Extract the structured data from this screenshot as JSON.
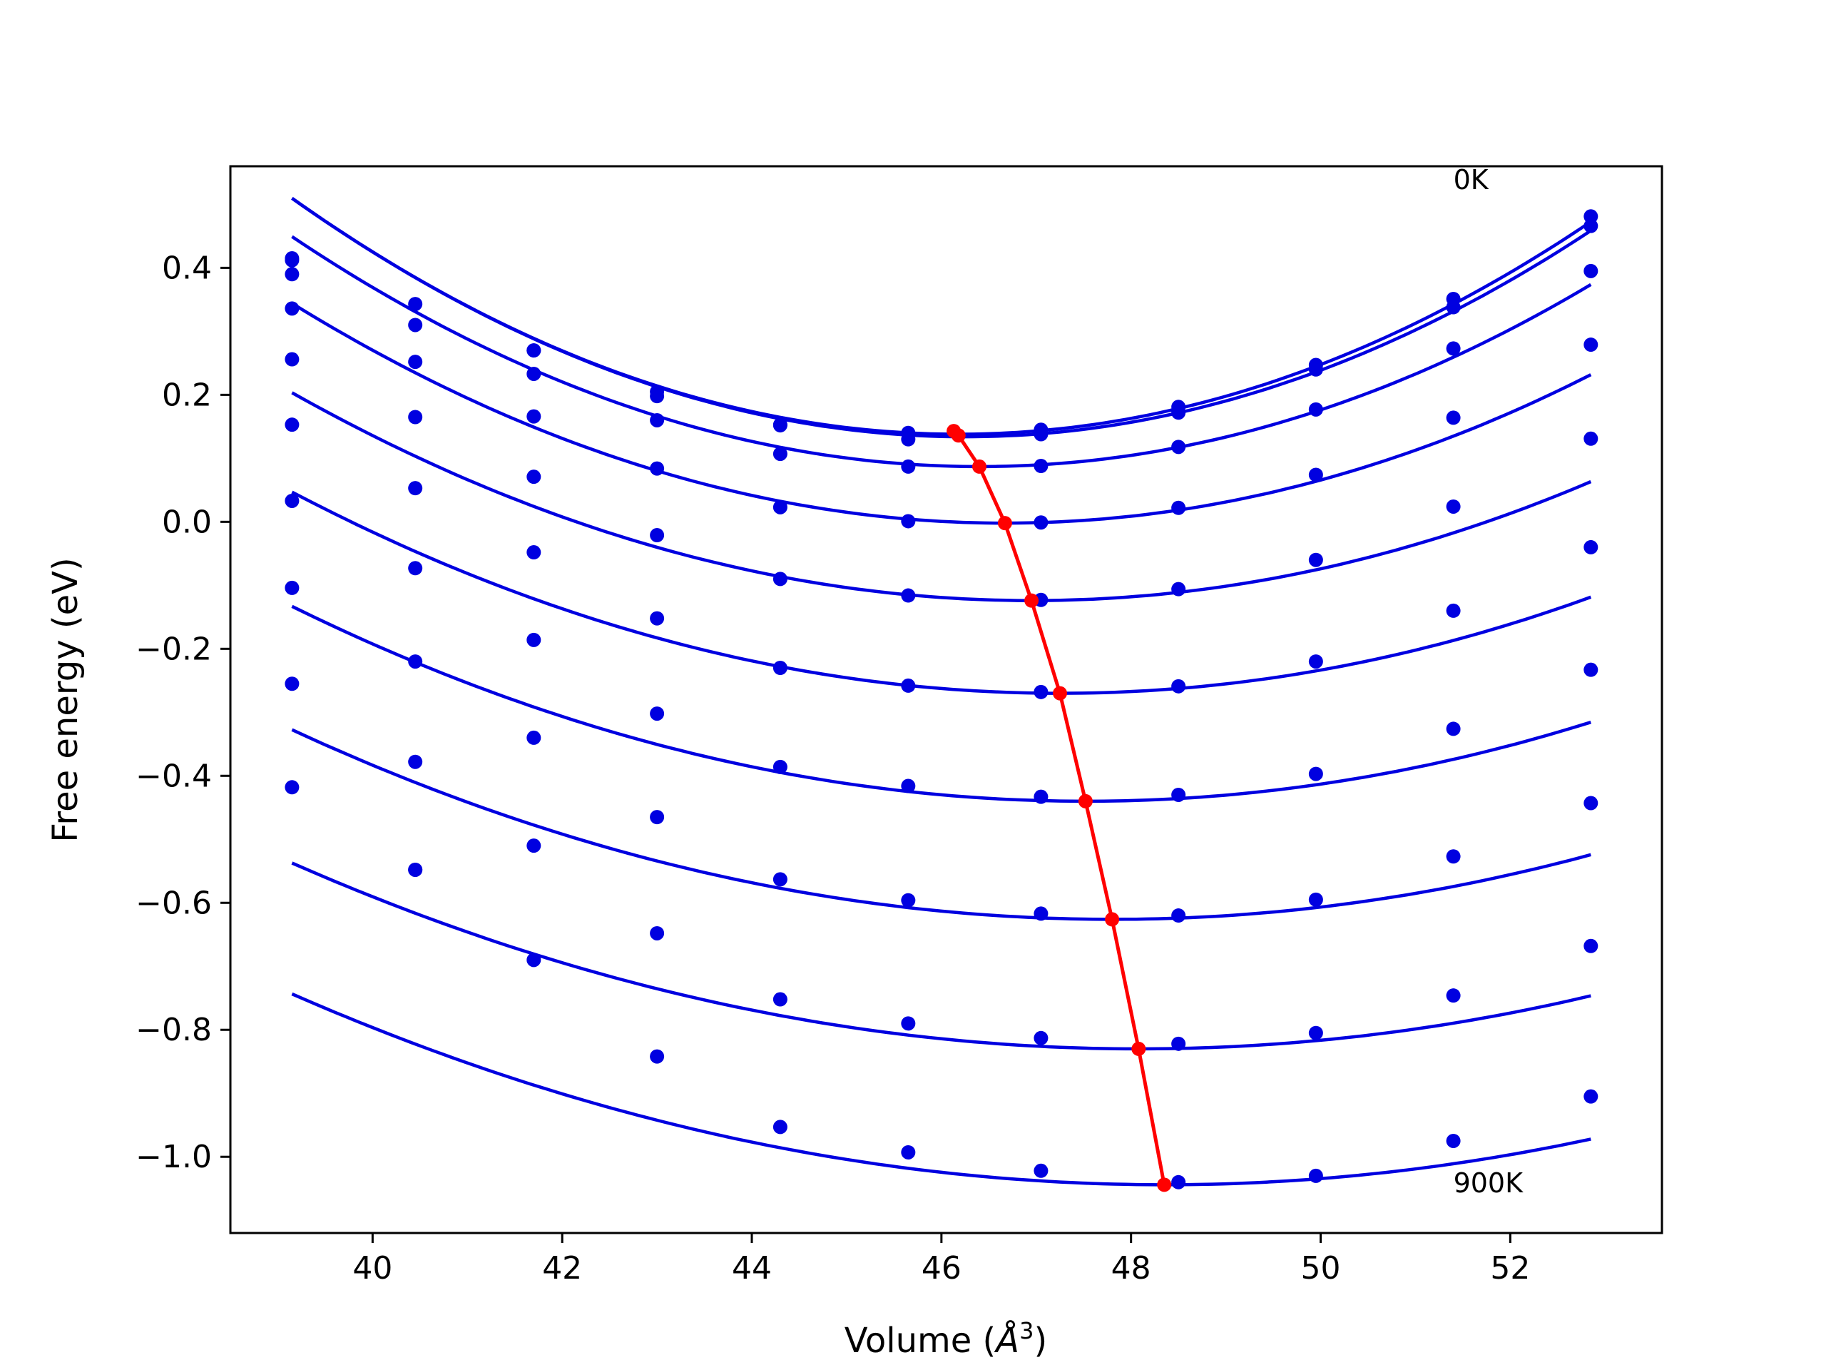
{
  "chart_data": {
    "type": "scatter",
    "xlabel": "Volume (",
    "xlabel_unit": "Å",
    "xlabel_sup": "3",
    "xlabel_close": ")",
    "ylabel": "Free energy (eV)",
    "xlim": [
      38.5,
      53.6
    ],
    "ylim": [
      -1.12,
      0.56
    ],
    "grid": false,
    "x_ticks": [
      40,
      42,
      44,
      46,
      48,
      50,
      52
    ],
    "x_tick_labels": [
      "40",
      "42",
      "44",
      "46",
      "48",
      "50",
      "52"
    ],
    "y_ticks": [
      0.4,
      0.2,
      0.0,
      -0.2,
      -0.4,
      -0.6,
      -0.8,
      -1.0
    ],
    "y_tick_labels": [
      "0.4",
      "0.2",
      "0.0",
      "−0.2",
      "−0.4",
      "−0.6",
      "−0.8",
      "−1.0"
    ],
    "annotations": [
      {
        "text": "0K",
        "x": 51.4,
        "y": 0.54
      },
      {
        "text": "900K",
        "x": 51.4,
        "y": -1.04
      }
    ],
    "volumes": [
      39.15,
      40.45,
      41.7,
      43.0,
      44.3,
      45.65,
      47.05,
      48.5,
      49.95,
      51.4,
      52.85
    ],
    "series_color": "#0000e0",
    "minimum_color": "#ff0000",
    "series": [
      {
        "values": [
          0.415,
          0.343,
          0.27,
          0.205,
          0.153,
          0.13,
          0.138,
          0.181,
          0.247,
          0.351,
          0.481
        ],
        "fit": {
          "a": 0.00752,
          "v0": 46.18,
          "e0": 0.138
        }
      },
      {
        "values": [
          0.412,
          0.31,
          0.27,
          0.198,
          0.152,
          0.14,
          0.145,
          0.172,
          0.24,
          0.338,
          0.466
        ],
        "fit": {
          "a": 0.00745,
          "v0": 46.25,
          "e0": 0.134
        }
      },
      {
        "values": [
          0.39,
          0.252,
          0.233,
          0.16,
          0.107,
          0.087,
          0.088,
          0.118,
          0.177,
          0.273,
          0.395
        ],
        "fit": {
          "a": 0.00689,
          "v0": 46.4,
          "e0": 0.087
        }
      },
      {
        "values": [
          0.336,
          0.165,
          0.166,
          0.084,
          0.023,
          0.001,
          -0.001,
          0.022,
          0.074,
          0.164,
          0.279
        ],
        "fit": {
          "a": 0.00612,
          "v0": 46.67,
          "e0": -0.002
        }
      },
      {
        "values": [
          0.256,
          0.053,
          0.071,
          -0.021,
          -0.09,
          -0.116,
          -0.123,
          -0.106,
          -0.06,
          0.024,
          0.131
        ],
        "fit": {
          "a": 0.00538,
          "v0": 46.95,
          "e0": -0.124
        }
      },
      {
        "values": [
          0.153,
          -0.073,
          -0.048,
          -0.152,
          -0.23,
          -0.258,
          -0.268,
          -0.259,
          -0.22,
          -0.14,
          -0.04
        ],
        "fit": {
          "a": 0.00483,
          "v0": 47.25,
          "e0": -0.27
        }
      },
      {
        "values": [
          0.033,
          -0.22,
          -0.186,
          -0.302,
          -0.386,
          -0.416,
          -0.433,
          -0.43,
          -0.397,
          -0.326,
          -0.233
        ],
        "fit": {
          "a": 0.00438,
          "v0": 47.52,
          "e0": -0.44
        }
      },
      {
        "values": [
          -0.104,
          -0.378,
          -0.34,
          -0.465,
          -0.563,
          -0.596,
          -0.617,
          -0.62,
          -0.595,
          -0.527,
          -0.443
        ],
        "fit": {
          "a": 0.00399,
          "v0": 47.8,
          "e0": -0.626
        }
      },
      {
        "values": [
          -0.255,
          -0.548,
          -0.51,
          -0.648,
          -0.752,
          -0.79,
          -0.813,
          -0.822,
          -0.805,
          -0.746,
          -0.668
        ],
        "fit": {
          "a": 0.00367,
          "v0": 48.08,
          "e0": -0.83
        }
      },
      {
        "values": [
          -0.418,
          -0.548,
          -0.69,
          -0.842,
          -0.953,
          -0.993,
          -1.022,
          -1.04,
          -1.03,
          -0.975,
          -0.905
        ],
        "fit": {
          "a": 0.00355,
          "v0": 48.35,
          "e0": -1.044
        }
      }
    ],
    "equilibrium": {
      "x": [
        46.13,
        46.18,
        46.4,
        46.67,
        46.95,
        47.25,
        47.52,
        47.8,
        48.08,
        48.35
      ],
      "y": [
        0.143,
        0.136,
        0.087,
        -0.002,
        -0.124,
        -0.27,
        -0.44,
        -0.626,
        -0.83,
        -1.044
      ]
    }
  }
}
